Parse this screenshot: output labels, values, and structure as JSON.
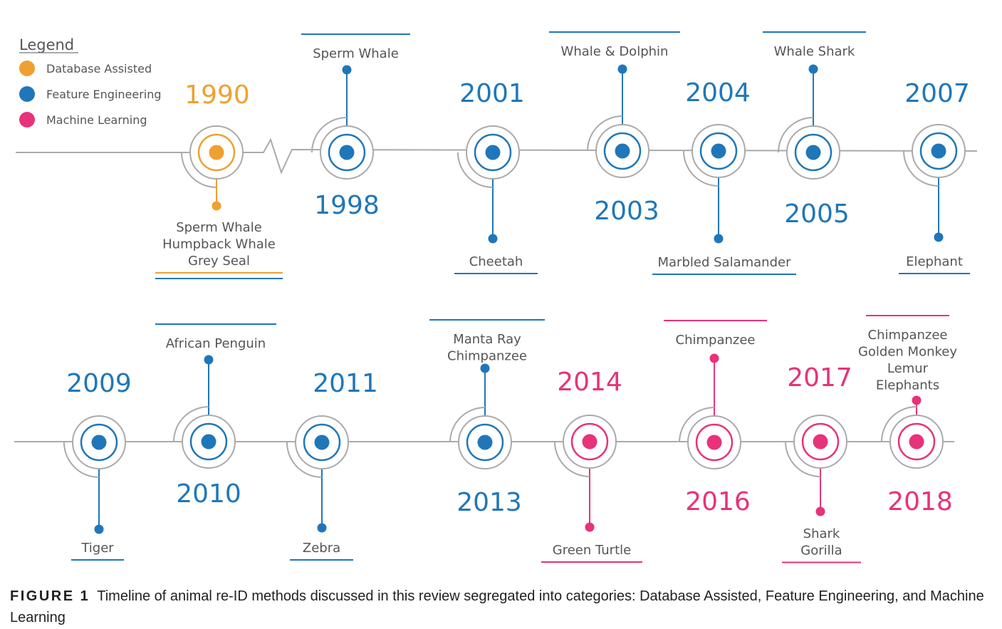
{
  "legend": {
    "title": "Legend",
    "items": [
      {
        "label": "Database Assisted",
        "color": "#f0a030"
      },
      {
        "label": "Feature Engineering",
        "color": "#1f77b9"
      },
      {
        "label": "Machine Learning",
        "color": "#e8327a"
      }
    ]
  },
  "colors": {
    "line": "#aaaaaa",
    "ring": "#aaaaaa"
  },
  "events": [
    {
      "year": "1990",
      "category": "Database Assisted",
      "animals": [
        "Sperm Whale",
        "Humpback Whale",
        "Grey Seal"
      ]
    },
    {
      "year": "1998",
      "category": "Feature Engineering",
      "animals": [
        "Sperm Whale"
      ]
    },
    {
      "year": "2001",
      "category": "Feature Engineering",
      "animals": [
        "Cheetah"
      ]
    },
    {
      "year": "2003",
      "category": "Feature Engineering",
      "animals": [
        "Whale & Dolphin"
      ]
    },
    {
      "year": "2004",
      "category": "Feature Engineering",
      "animals": [
        "Marbled Salamander"
      ]
    },
    {
      "year": "2005",
      "category": "Feature Engineering",
      "animals": [
        "Whale Shark"
      ]
    },
    {
      "year": "2007",
      "category": "Feature Engineering",
      "animals": [
        "Elephant"
      ]
    },
    {
      "year": "2009",
      "category": "Feature Engineering",
      "animals": [
        "Tiger"
      ]
    },
    {
      "year": "2010",
      "category": "Feature Engineering",
      "animals": [
        "African Penguin"
      ]
    },
    {
      "year": "2011",
      "category": "Feature Engineering",
      "animals": [
        "Zebra"
      ]
    },
    {
      "year": "2013",
      "category": "Feature Engineering",
      "animals": [
        "Manta Ray",
        "Chimpanzee"
      ]
    },
    {
      "year": "2014",
      "category": "Machine Learning",
      "animals": [
        "Green Turtle"
      ]
    },
    {
      "year": "2016",
      "category": "Machine Learning",
      "animals": [
        "Chimpanzee"
      ]
    },
    {
      "year": "2017",
      "category": "Machine Learning",
      "animals": [
        "Shark",
        "Gorilla"
      ]
    },
    {
      "year": "2018",
      "category": "Machine Learning",
      "animals": [
        "Chimpanzee",
        "Golden Monkey",
        "Lemur",
        "Elephants"
      ]
    }
  ],
  "caption": {
    "label": "FIGURE 1",
    "text": "Timeline of animal re-ID methods discussed in this review segregated into categories: Database Assisted, Feature Engineering, and Machine Learning"
  }
}
